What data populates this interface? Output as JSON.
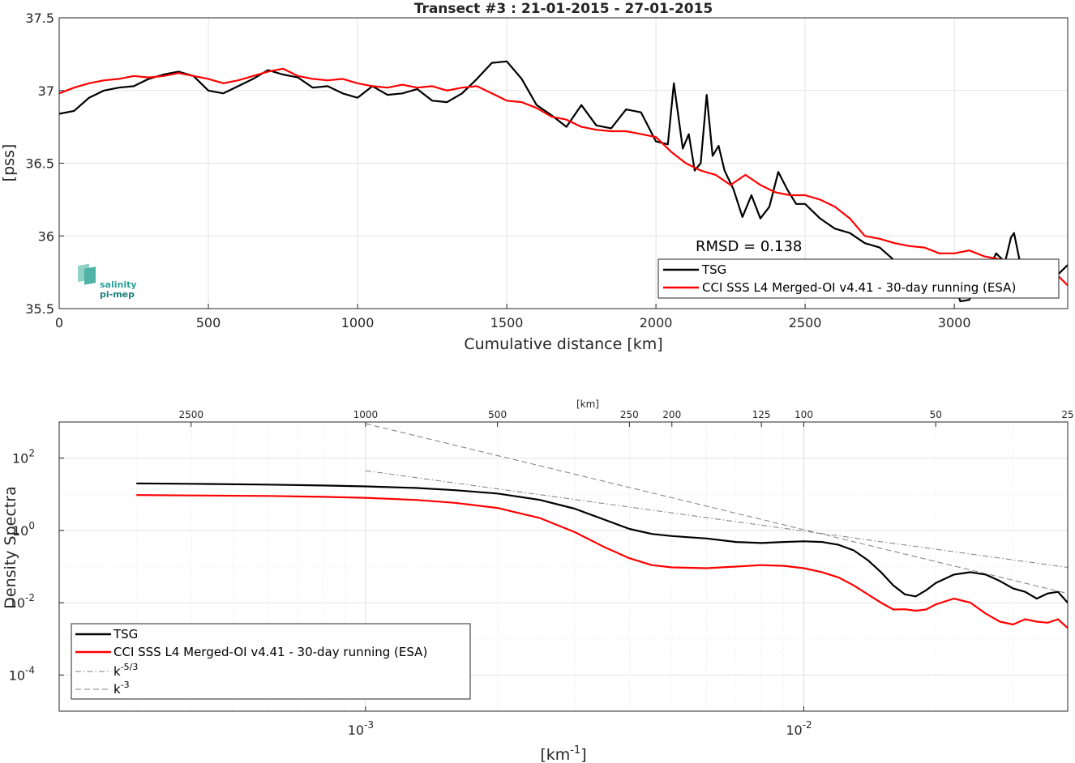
{
  "chart_data": [
    {
      "type": "line",
      "title": "Transect #3 : 21-01-2015 - 27-01-2015",
      "xlabel": "Cumulative distance [km]",
      "ylabel": "[pss]",
      "xlim": [
        0,
        3380
      ],
      "ylim": [
        35.5,
        37.5
      ],
      "xticks": [
        0,
        500,
        1000,
        1500,
        2000,
        2500,
        3000
      ],
      "xtick_labels": [
        "0",
        "500",
        "1000",
        "1500",
        "2000",
        "2500",
        "3000"
      ],
      "yticks": [
        35.5,
        36,
        36.5,
        37,
        37.5
      ],
      "ytick_labels": [
        "35.5",
        "36",
        "36.5",
        "37",
        "37.5"
      ],
      "grid": true,
      "legend_position": "bottom-right",
      "annotation": "RMSD = 0.138",
      "logo": {
        "line1": "salinity",
        "line2": "pi-mep"
      },
      "series": [
        {
          "name": "TSG",
          "color": "#000000",
          "points": [
            [
              0,
              36.84
            ],
            [
              50,
              36.86
            ],
            [
              100,
              36.95
            ],
            [
              150,
              37.0
            ],
            [
              200,
              37.02
            ],
            [
              250,
              37.03
            ],
            [
              300,
              37.08
            ],
            [
              350,
              37.11
            ],
            [
              400,
              37.13
            ],
            [
              450,
              37.1
            ],
            [
              500,
              37.0
            ],
            [
              550,
              36.98
            ],
            [
              600,
              37.03
            ],
            [
              650,
              37.08
            ],
            [
              700,
              37.14
            ],
            [
              750,
              37.11
            ],
            [
              800,
              37.09
            ],
            [
              850,
              37.02
            ],
            [
              900,
              37.03
            ],
            [
              950,
              36.98
            ],
            [
              1000,
              36.95
            ],
            [
              1050,
              37.03
            ],
            [
              1100,
              36.97
            ],
            [
              1150,
              36.98
            ],
            [
              1200,
              37.01
            ],
            [
              1250,
              36.93
            ],
            [
              1300,
              36.92
            ],
            [
              1350,
              36.98
            ],
            [
              1400,
              37.08
            ],
            [
              1450,
              37.19
            ],
            [
              1500,
              37.2
            ],
            [
              1550,
              37.08
            ],
            [
              1600,
              36.9
            ],
            [
              1650,
              36.83
            ],
            [
              1700,
              36.75
            ],
            [
              1750,
              36.9
            ],
            [
              1800,
              36.76
            ],
            [
              1850,
              36.74
            ],
            [
              1900,
              36.87
            ],
            [
              1950,
              36.85
            ],
            [
              2000,
              36.65
            ],
            [
              2040,
              36.63
            ],
            [
              2060,
              37.05
            ],
            [
              2090,
              36.6
            ],
            [
              2110,
              36.7
            ],
            [
              2130,
              36.45
            ],
            [
              2150,
              36.5
            ],
            [
              2170,
              36.97
            ],
            [
              2190,
              36.55
            ],
            [
              2210,
              36.62
            ],
            [
              2230,
              36.45
            ],
            [
              2260,
              36.32
            ],
            [
              2290,
              36.13
            ],
            [
              2320,
              36.28
            ],
            [
              2350,
              36.12
            ],
            [
              2380,
              36.2
            ],
            [
              2410,
              36.44
            ],
            [
              2440,
              36.32
            ],
            [
              2470,
              36.22
            ],
            [
              2500,
              36.22
            ],
            [
              2550,
              36.12
            ],
            [
              2600,
              36.05
            ],
            [
              2650,
              36.02
            ],
            [
              2700,
              35.95
            ],
            [
              2750,
              35.92
            ],
            [
              2800,
              35.83
            ],
            [
              2850,
              35.8
            ],
            [
              2900,
              35.78
            ],
            [
              2950,
              35.82
            ],
            [
              2990,
              35.75
            ],
            [
              3020,
              35.55
            ],
            [
              3050,
              35.56
            ],
            [
              3080,
              35.68
            ],
            [
              3110,
              35.75
            ],
            [
              3140,
              35.88
            ],
            [
              3170,
              35.82
            ],
            [
              3190,
              35.99
            ],
            [
              3200,
              36.02
            ],
            [
              3220,
              35.82
            ],
            [
              3260,
              35.75
            ],
            [
              3300,
              35.76
            ],
            [
              3340,
              35.72
            ],
            [
              3380,
              35.8
            ]
          ]
        },
        {
          "name": "CCI SSS L4 Merged-OI v4.41 - 30-day running (ESA)",
          "color": "#ff0000",
          "points": [
            [
              0,
              36.98
            ],
            [
              50,
              37.02
            ],
            [
              100,
              37.05
            ],
            [
              150,
              37.07
            ],
            [
              200,
              37.08
            ],
            [
              250,
              37.1
            ],
            [
              300,
              37.09
            ],
            [
              350,
              37.1
            ],
            [
              400,
              37.12
            ],
            [
              450,
              37.1
            ],
            [
              500,
              37.08
            ],
            [
              550,
              37.05
            ],
            [
              600,
              37.07
            ],
            [
              650,
              37.1
            ],
            [
              700,
              37.13
            ],
            [
              750,
              37.15
            ],
            [
              800,
              37.1
            ],
            [
              850,
              37.08
            ],
            [
              900,
              37.07
            ],
            [
              950,
              37.08
            ],
            [
              1000,
              37.05
            ],
            [
              1050,
              37.03
            ],
            [
              1100,
              37.02
            ],
            [
              1150,
              37.04
            ],
            [
              1200,
              37.02
            ],
            [
              1250,
              37.03
            ],
            [
              1300,
              37.0
            ],
            [
              1350,
              37.02
            ],
            [
              1400,
              37.03
            ],
            [
              1450,
              36.98
            ],
            [
              1500,
              36.93
            ],
            [
              1550,
              36.92
            ],
            [
              1600,
              36.88
            ],
            [
              1650,
              36.82
            ],
            [
              1700,
              36.8
            ],
            [
              1750,
              36.75
            ],
            [
              1800,
              36.73
            ],
            [
              1850,
              36.72
            ],
            [
              1900,
              36.72
            ],
            [
              1950,
              36.7
            ],
            [
              2000,
              36.68
            ],
            [
              2050,
              36.58
            ],
            [
              2100,
              36.5
            ],
            [
              2150,
              36.45
            ],
            [
              2200,
              36.42
            ],
            [
              2250,
              36.35
            ],
            [
              2300,
              36.42
            ],
            [
              2350,
              36.35
            ],
            [
              2400,
              36.3
            ],
            [
              2450,
              36.28
            ],
            [
              2500,
              36.28
            ],
            [
              2550,
              36.25
            ],
            [
              2600,
              36.2
            ],
            [
              2650,
              36.12
            ],
            [
              2700,
              36.0
            ],
            [
              2750,
              35.98
            ],
            [
              2800,
              35.95
            ],
            [
              2850,
              35.93
            ],
            [
              2900,
              35.92
            ],
            [
              2950,
              35.88
            ],
            [
              3000,
              35.88
            ],
            [
              3050,
              35.9
            ],
            [
              3100,
              35.86
            ],
            [
              3150,
              35.84
            ],
            [
              3200,
              35.8
            ],
            [
              3250,
              35.82
            ],
            [
              3300,
              35.75
            ],
            [
              3350,
              35.72
            ],
            [
              3380,
              35.66
            ]
          ]
        }
      ]
    },
    {
      "type": "line",
      "xlabel": "[km",
      "xlabel_sup": "-1",
      "xlabel_end": "]",
      "ylabel": "Density Spectra",
      "x_scale": "log",
      "y_scale": "log",
      "xlim": [
        0.0002,
        0.04
      ],
      "ylim": [
        1e-05,
        1000
      ],
      "xticks": [
        0.001,
        0.01
      ],
      "xtick_labels": [
        {
          "base": "10",
          "exp": "-3"
        },
        {
          "base": "10",
          "exp": "-2"
        }
      ],
      "yticks": [
        0.0001,
        0.01,
        1,
        100
      ],
      "ytick_labels": [
        {
          "base": "10",
          "exp": "-4"
        },
        {
          "base": "10",
          "exp": "-2"
        },
        {
          "base": "10",
          "exp": "0"
        },
        {
          "base": "10",
          "exp": "2"
        }
      ],
      "top_axis_label": "[km]",
      "top_axis_ticks": [
        2500,
        1000,
        500,
        250,
        200,
        125,
        100,
        50,
        25
      ],
      "top_axis_tick_labels": [
        "2500",
        "1000",
        "500",
        "250",
        "200",
        "125",
        "100",
        "50",
        "25"
      ],
      "grid": true,
      "legend_position": "bottom-left",
      "series": [
        {
          "name": "TSG",
          "color": "#000000",
          "points": [
            [
              0.0003,
              20
            ],
            [
              0.0004,
              19.5
            ],
            [
              0.0006,
              18.5
            ],
            [
              0.0008,
              17.5
            ],
            [
              0.001,
              16.5
            ],
            [
              0.0013,
              15
            ],
            [
              0.0016,
              13
            ],
            [
              0.002,
              10.5
            ],
            [
              0.0025,
              7
            ],
            [
              0.003,
              4
            ],
            [
              0.0035,
              2
            ],
            [
              0.004,
              1.1
            ],
            [
              0.0045,
              0.8
            ],
            [
              0.005,
              0.7
            ],
            [
              0.006,
              0.6
            ],
            [
              0.007,
              0.48
            ],
            [
              0.008,
              0.45
            ],
            [
              0.009,
              0.48
            ],
            [
              0.01,
              0.5
            ],
            [
              0.011,
              0.48
            ],
            [
              0.012,
              0.4
            ],
            [
              0.013,
              0.28
            ],
            [
              0.014,
              0.15
            ],
            [
              0.015,
              0.07
            ],
            [
              0.016,
              0.03
            ],
            [
              0.017,
              0.017
            ],
            [
              0.018,
              0.015
            ],
            [
              0.019,
              0.022
            ],
            [
              0.02,
              0.035
            ],
            [
              0.022,
              0.06
            ],
            [
              0.024,
              0.07
            ],
            [
              0.026,
              0.06
            ],
            [
              0.028,
              0.04
            ],
            [
              0.03,
              0.025
            ],
            [
              0.032,
              0.02
            ],
            [
              0.034,
              0.013
            ],
            [
              0.036,
              0.018
            ],
            [
              0.038,
              0.02
            ],
            [
              0.04,
              0.01
            ]
          ]
        },
        {
          "name": "CCI SSS L4 Merged-OI v4.41 - 30-day running (ESA)",
          "color": "#ff0000",
          "points": [
            [
              0.0003,
              9.5
            ],
            [
              0.0004,
              9.3
            ],
            [
              0.0006,
              9
            ],
            [
              0.0008,
              8.5
            ],
            [
              0.001,
              8
            ],
            [
              0.0013,
              7
            ],
            [
              0.0016,
              5.8
            ],
            [
              0.002,
              4.2
            ],
            [
              0.0025,
              2.2
            ],
            [
              0.003,
              0.9
            ],
            [
              0.0035,
              0.35
            ],
            [
              0.004,
              0.17
            ],
            [
              0.0045,
              0.11
            ],
            [
              0.005,
              0.095
            ],
            [
              0.006,
              0.09
            ],
            [
              0.007,
              0.1
            ],
            [
              0.008,
              0.11
            ],
            [
              0.009,
              0.105
            ],
            [
              0.01,
              0.09
            ],
            [
              0.011,
              0.07
            ],
            [
              0.012,
              0.05
            ],
            [
              0.013,
              0.03
            ],
            [
              0.014,
              0.017
            ],
            [
              0.015,
              0.01
            ],
            [
              0.016,
              0.0065
            ],
            [
              0.017,
              0.0066
            ],
            [
              0.018,
              0.006
            ],
            [
              0.019,
              0.0065
            ],
            [
              0.02,
              0.009
            ],
            [
              0.022,
              0.013
            ],
            [
              0.024,
              0.01
            ],
            [
              0.026,
              0.005
            ],
            [
              0.028,
              0.003
            ],
            [
              0.03,
              0.0025
            ],
            [
              0.032,
              0.0035
            ],
            [
              0.034,
              0.003
            ],
            [
              0.036,
              0.0028
            ],
            [
              0.038,
              0.0035
            ],
            [
              0.04,
              0.002
            ]
          ]
        },
        {
          "name": "k",
          "name_sup": "-5/3",
          "color": "#7f7f7f",
          "style": "dashdot",
          "points": [
            [
              0.001,
              45
            ],
            [
              0.04,
              0.095
            ]
          ]
        },
        {
          "name": "k",
          "name_sup": "-3",
          "color": "#7f7f7f",
          "style": "dashed",
          "points": [
            [
              0.001,
              900
            ],
            [
              0.04,
              0.018
            ]
          ]
        }
      ]
    }
  ]
}
